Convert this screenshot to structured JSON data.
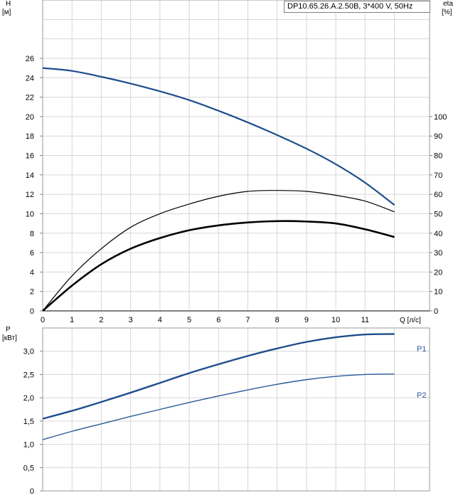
{
  "model_label": "DP10.65.26.A.2.50B, 3*400 V, 50Hz",
  "chart_data": [
    {
      "type": "line",
      "panel": "head-efficiency",
      "y_axis_label": "H",
      "y_axis_unit": "[м]",
      "y2_axis_label": "eta",
      "y2_axis_unit": "[%]",
      "x_axis_label": "Q [л/с]",
      "x_ticks": [
        "0",
        "1",
        "2",
        "3",
        "4",
        "5",
        "6",
        "7",
        "8",
        "9",
        "10",
        "11"
      ],
      "y_ticks": [
        "0",
        "2",
        "4",
        "6",
        "8",
        "10",
        "12",
        "14",
        "16",
        "18",
        "20",
        "22",
        "24",
        "26"
      ],
      "y2_ticks": [
        "0",
        "10",
        "20",
        "30",
        "40",
        "50",
        "60",
        "70",
        "80",
        "90",
        "100"
      ],
      "xlim": [
        0,
        13.2
      ],
      "ylim": [
        0,
        32
      ],
      "y2lim": [
        0,
        160
      ],
      "grid": true,
      "series": [
        {
          "axis": "y",
          "color": "#1f4e8c",
          "x": [
            0,
            1,
            2,
            3,
            4,
            5,
            6,
            7,
            8,
            9,
            10,
            11,
            12
          ],
          "values": [
            25.0,
            24.7,
            24.1,
            23.4,
            22.6,
            21.7,
            20.6,
            19.4,
            18.1,
            16.7,
            15.1,
            13.2,
            10.9
          ]
        },
        {
          "axis": "y2",
          "color": "#000000",
          "x": [
            0,
            1,
            2,
            3,
            4,
            5,
            6,
            7,
            8,
            9,
            10,
            11,
            12
          ],
          "values": [
            0,
            18,
            32,
            43,
            50,
            55,
            59,
            61.5,
            62,
            61.5,
            59.5,
            56.5,
            51
          ]
        },
        {
          "axis": "y2",
          "color": "#000000",
          "x": [
            0,
            1,
            2,
            3,
            4,
            5,
            6,
            7,
            8,
            9,
            10,
            11,
            12
          ],
          "values": [
            0,
            13,
            24,
            32,
            37.5,
            41.5,
            44,
            45.5,
            46.2,
            46,
            45,
            42,
            38
          ]
        }
      ]
    },
    {
      "type": "line",
      "panel": "power",
      "y_axis_label": "P",
      "y_axis_unit": "[кВт]",
      "y_ticks": [
        "0",
        "0,5",
        "1,0",
        "1,5",
        "2,0",
        "2,5",
        "3,0"
      ],
      "xlim": [
        0,
        13.2
      ],
      "ylim": [
        0,
        3.5
      ],
      "grid": true,
      "series": [
        {
          "name": "P1",
          "color": "#1f4e8c",
          "x": [
            0,
            1,
            2,
            3,
            4,
            5,
            6,
            7,
            8,
            9,
            10,
            11,
            12
          ],
          "values": [
            1.55,
            1.72,
            1.91,
            2.11,
            2.32,
            2.53,
            2.72,
            2.9,
            3.06,
            3.2,
            3.3,
            3.36,
            3.37
          ]
        },
        {
          "name": "P2",
          "color": "#2a5a9a",
          "x": [
            0,
            1,
            2,
            3,
            4,
            5,
            6,
            7,
            8,
            9,
            10,
            11,
            12
          ],
          "values": [
            1.1,
            1.28,
            1.44,
            1.6,
            1.75,
            1.9,
            2.04,
            2.17,
            2.29,
            2.39,
            2.46,
            2.5,
            2.51
          ]
        }
      ]
    }
  ]
}
